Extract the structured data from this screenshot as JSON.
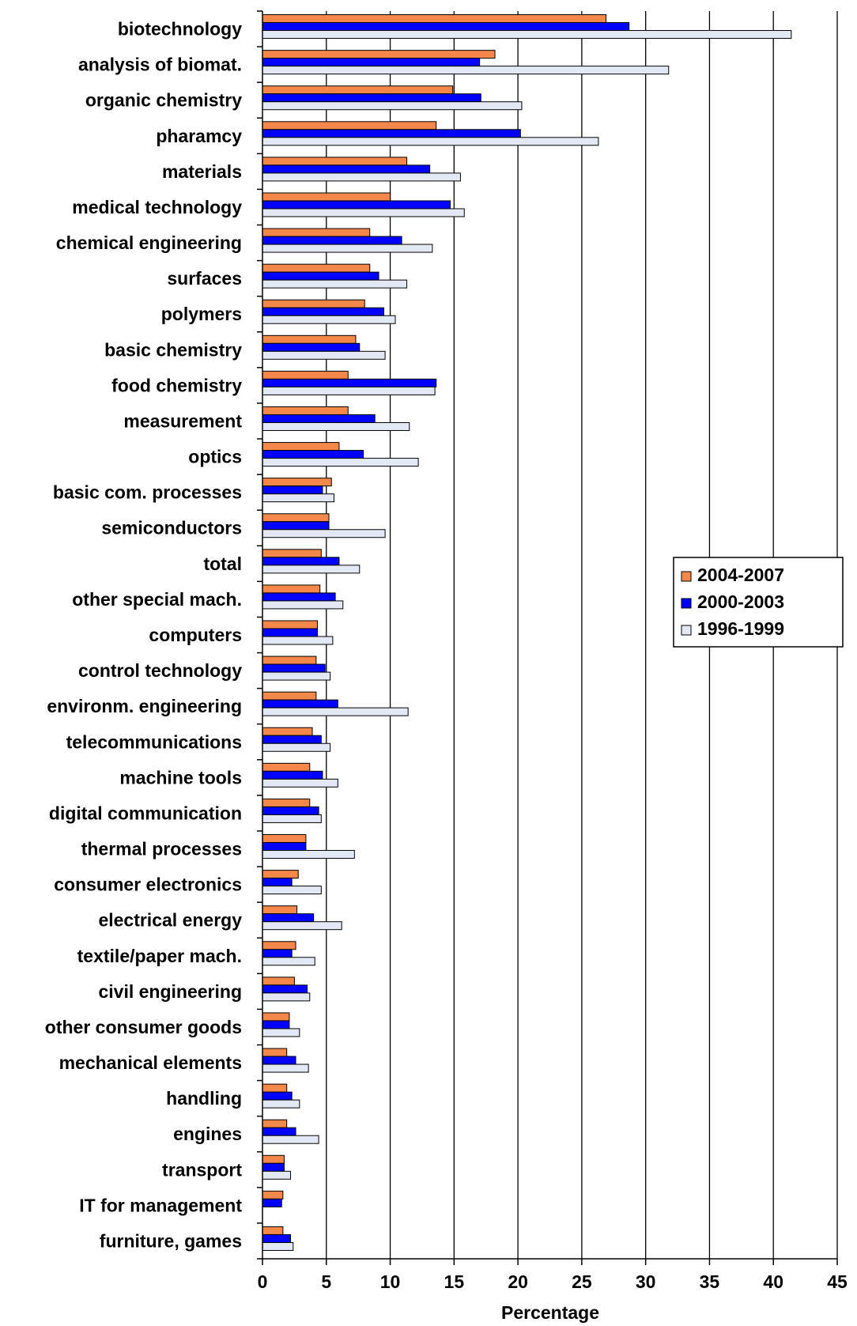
{
  "chart_data": {
    "type": "bar",
    "orientation": "horizontal",
    "categories": [
      "biotechnology",
      "analysis of biomat.",
      "organic chemistry",
      "pharamcy",
      "materials",
      "medical technology",
      "chemical engineering",
      "surfaces",
      "polymers",
      "basic chemistry",
      "food chemistry",
      "measurement",
      "optics",
      "basic com. processes",
      "semiconductors",
      "total",
      "other special mach.",
      "computers",
      "control technology",
      "environm. engineering",
      "telecommunications",
      "machine tools",
      "digital communication",
      "thermal processes",
      "consumer electronics",
      "electrical energy",
      "textile/paper mach.",
      "civil engineering",
      "other consumer goods",
      "mechanical elements",
      "handling",
      "engines",
      "transport",
      "IT for management",
      "furniture, games"
    ],
    "series": [
      {
        "name": "2004-2007",
        "color": "#f4884a",
        "values": [
          26.9,
          18.2,
          14.9,
          13.6,
          11.3,
          10.0,
          8.4,
          8.4,
          8.0,
          7.3,
          6.7,
          6.7,
          6.0,
          5.4,
          5.2,
          4.6,
          4.5,
          4.3,
          4.2,
          4.2,
          3.9,
          3.7,
          3.7,
          3.4,
          2.8,
          2.7,
          2.6,
          2.5,
          2.1,
          1.9,
          1.9,
          1.9,
          1.7,
          1.6,
          1.6
        ]
      },
      {
        "name": "2000-2003",
        "color": "#0000ff",
        "values": [
          28.7,
          17.0,
          17.1,
          20.2,
          13.1,
          14.7,
          10.9,
          9.1,
          9.5,
          7.6,
          13.6,
          8.8,
          7.9,
          4.7,
          5.2,
          6.0,
          5.7,
          4.3,
          4.9,
          5.9,
          4.6,
          4.7,
          4.4,
          3.4,
          2.3,
          4.0,
          2.3,
          3.5,
          2.1,
          2.6,
          2.3,
          2.6,
          1.7,
          1.5,
          2.2
        ]
      },
      {
        "name": "1996-1999",
        "color": "#e3e9f4",
        "values": [
          41.4,
          31.8,
          20.3,
          26.3,
          15.5,
          15.8,
          13.3,
          11.3,
          10.4,
          9.6,
          13.5,
          11.5,
          12.2,
          5.6,
          9.6,
          7.6,
          6.3,
          5.5,
          5.3,
          11.4,
          5.3,
          5.9,
          4.6,
          7.2,
          4.6,
          6.2,
          4.1,
          3.7,
          2.9,
          3.6,
          2.9,
          4.4,
          2.2,
          0,
          2.4
        ]
      }
    ],
    "xlabel": "Percentage",
    "xlim": [
      0,
      45
    ],
    "xticks": [
      0,
      5,
      10,
      15,
      20,
      25,
      30,
      35,
      40,
      45
    ],
    "grid": "vertical",
    "legend_position": "right"
  }
}
